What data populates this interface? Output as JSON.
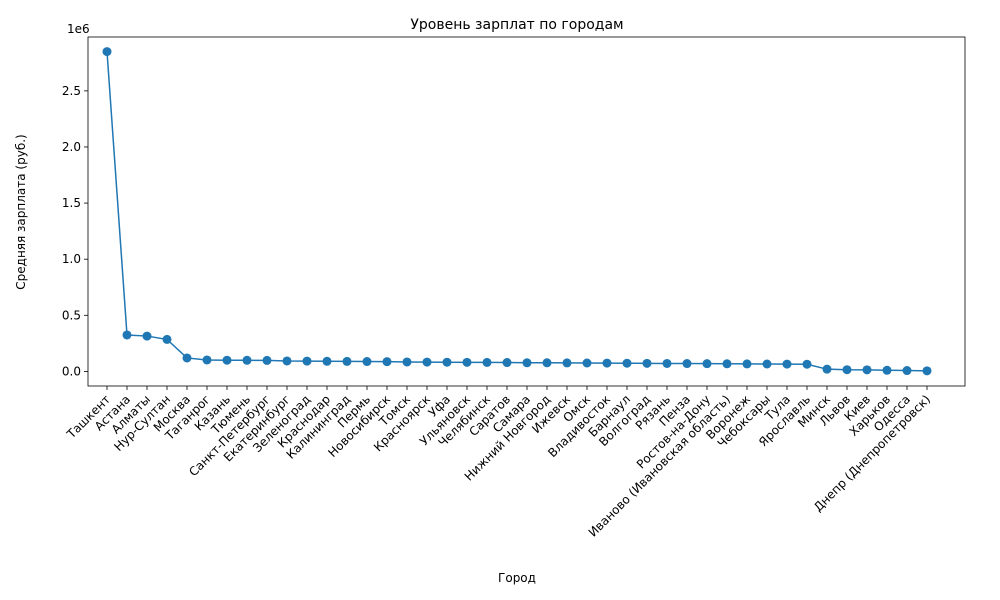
{
  "chart_data": {
    "type": "line",
    "title": "Уровень зарплат по городам",
    "xlabel": "Город",
    "ylabel": "Средняя зарплата (руб.)",
    "y_offset_label": "1e6",
    "ylim": [
      -130000,
      2980000
    ],
    "yticks": [
      0.0,
      0.5,
      1.0,
      1.5,
      2.0,
      2.5
    ],
    "grid": false,
    "color": "#1f77b4",
    "categories": [
      "Ташкент",
      "Астана",
      "Алматы",
      "Нур-Султан",
      "Москва",
      "Таганрог",
      "Казань",
      "Тюмень",
      "Санкт-Петербург",
      "Екатеринбург",
      "Зеленоград",
      "Краснодар",
      "Калининград",
      "Пермь",
      "Новосибирск",
      "Томск",
      "Красноярск",
      "Уфа",
      "Ульяновск",
      "Челябинск",
      "Саратов",
      "Самара",
      "Нижний Новгород",
      "Ижевск",
      "Омск",
      "Владивосток",
      "Барнаул",
      "Волгоград",
      "Рязань",
      "Пенза",
      "Ростов-на-Дону",
      "Иваново (Ивановская область)",
      "Воронеж",
      "Чебоксары",
      "Тула",
      "Ярославль",
      "Минск",
      "Львов",
      "Киев",
      "Харьков",
      "Одесса",
      "Днепр (Днепропетровск)"
    ],
    "values": [
      2850000,
      325000,
      315000,
      285000,
      120000,
      102000,
      100000,
      99000,
      98000,
      93000,
      92000,
      90000,
      89000,
      88000,
      87000,
      84000,
      83000,
      82000,
      81000,
      80000,
      79000,
      77000,
      77000,
      76000,
      75000,
      74000,
      73000,
      72000,
      71000,
      70000,
      69000,
      68000,
      67000,
      66000,
      65000,
      64000,
      20000,
      15000,
      14000,
      10000,
      8000,
      5000
    ]
  }
}
